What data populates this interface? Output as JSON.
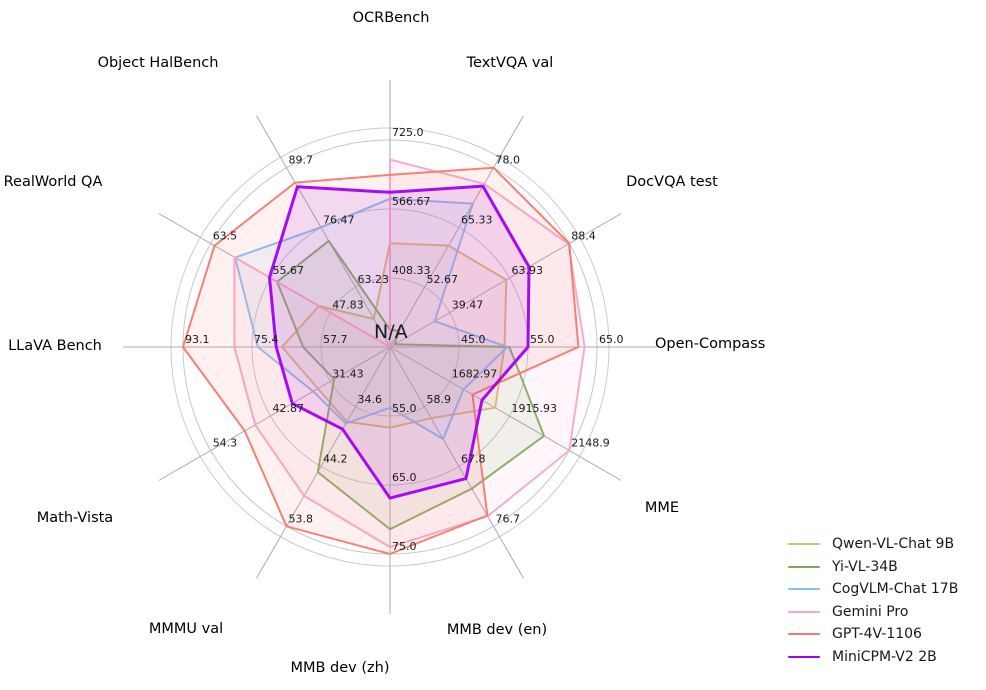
{
  "chart_data": {
    "type": "radar",
    "title": "",
    "center_label": "N/A",
    "grid": true,
    "legend_position": "bottom-right",
    "grid_color": "#c6c6c6",
    "spoke_color": "#ababab",
    "axes": [
      {
        "label": "OCRBench",
        "min": 250,
        "max": 725,
        "ticks": [
          "408.33",
          "566.67",
          "725.0"
        ]
      },
      {
        "label": "TextVQA val",
        "min": 40,
        "max": 78,
        "ticks": [
          "52.67",
          "65.33",
          "78.0"
        ]
      },
      {
        "label": "DocVQA test",
        "min": 15,
        "max": 88.4,
        "ticks": [
          "39.47",
          "63.93",
          "88.4"
        ]
      },
      {
        "label": "Open-Compass",
        "min": 35,
        "max": 65,
        "ticks": [
          "45.0",
          "55.0",
          "65.0"
        ]
      },
      {
        "label": "MME",
        "min": 1450,
        "max": 2148.9,
        "ticks": [
          "1682.97",
          "1915.93",
          "2148.9"
        ]
      },
      {
        "label": "MMB dev (en)",
        "min": 50,
        "max": 76.7,
        "ticks": [
          "58.9",
          "67.8",
          "76.7"
        ]
      },
      {
        "label": "MMB dev (zh)",
        "min": 45,
        "max": 75,
        "ticks": [
          "55.0",
          "65.0",
          "75.0"
        ]
      },
      {
        "label": "MMMU val",
        "min": 25,
        "max": 53.8,
        "ticks": [
          "34.6",
          "44.2",
          "53.8"
        ]
      },
      {
        "label": "Math-Vista",
        "min": 20,
        "max": 54.3,
        "ticks": [
          "31.43",
          "42.87",
          "54.3"
        ]
      },
      {
        "label": "LLaVA Bench",
        "min": 40,
        "max": 93.1,
        "ticks": [
          "57.7",
          "75.4",
          "93.1"
        ]
      },
      {
        "label": "RealWorld QA",
        "min": 40,
        "max": 63.5,
        "ticks": [
          "47.83",
          "55.67",
          "63.5"
        ]
      },
      {
        "label": "Object HalBench",
        "min": 50,
        "max": 89.7,
        "ticks": [
          "63.23",
          "76.47",
          "89.7"
        ]
      }
    ],
    "series": [
      {
        "name": "Qwen-VL-Chat 9B",
        "color": "#e3b96a",
        "emphasis": false,
        "values": [
          488,
          61.5,
          62.6,
          51.6,
          1860.0,
          60.6,
          56.7,
          37.0,
          33.8,
          67.7,
          49.3,
          56.2
        ]
      },
      {
        "name": "Yi-VL-34B",
        "color": "#7cac58",
        "emphasis": false,
        "values": [
          290,
          43.4,
          16.9,
          52.3,
          2050.2,
          71.1,
          71.4,
          45.1,
          30.7,
          62.3,
          54.8,
          73.5
        ]
      },
      {
        "name": "CogVLM-Chat 17B",
        "color": "#84c0f4",
        "emphasis": false,
        "values": [
          590,
          70.4,
          33.3,
          52.0,
          1736.6,
          63.7,
          53.8,
          37.3,
          34.7,
          73.9,
          60.3,
          76.5
        ]
      },
      {
        "name": "Gemini Pro",
        "color": "#f8a7cb",
        "emphasis": false,
        "values": [
          680,
          74.6,
          88.1,
          63.2,
          2148.9,
          75.2,
          74.0,
          48.9,
          45.8,
          79.9,
          60.4,
          null
        ]
      },
      {
        "name": "GPT-4V-1106",
        "color": "#f5796e",
        "emphasis": false,
        "values": [
          645,
          78.0,
          88.4,
          62.3,
          1771.5,
          75.1,
          75.0,
          53.8,
          47.8,
          93.1,
          63.0,
          86.4
        ]
      },
      {
        "name": "MiniCPM-V2 2B",
        "color": "#a100f0",
        "emphasis": true,
        "values": [
          605,
          74.1,
          71.9,
          55.0,
          1808.6,
          69.6,
          66.9,
          38.2,
          38.7,
          69.2,
          55.8,
          85.5
        ]
      }
    ]
  }
}
